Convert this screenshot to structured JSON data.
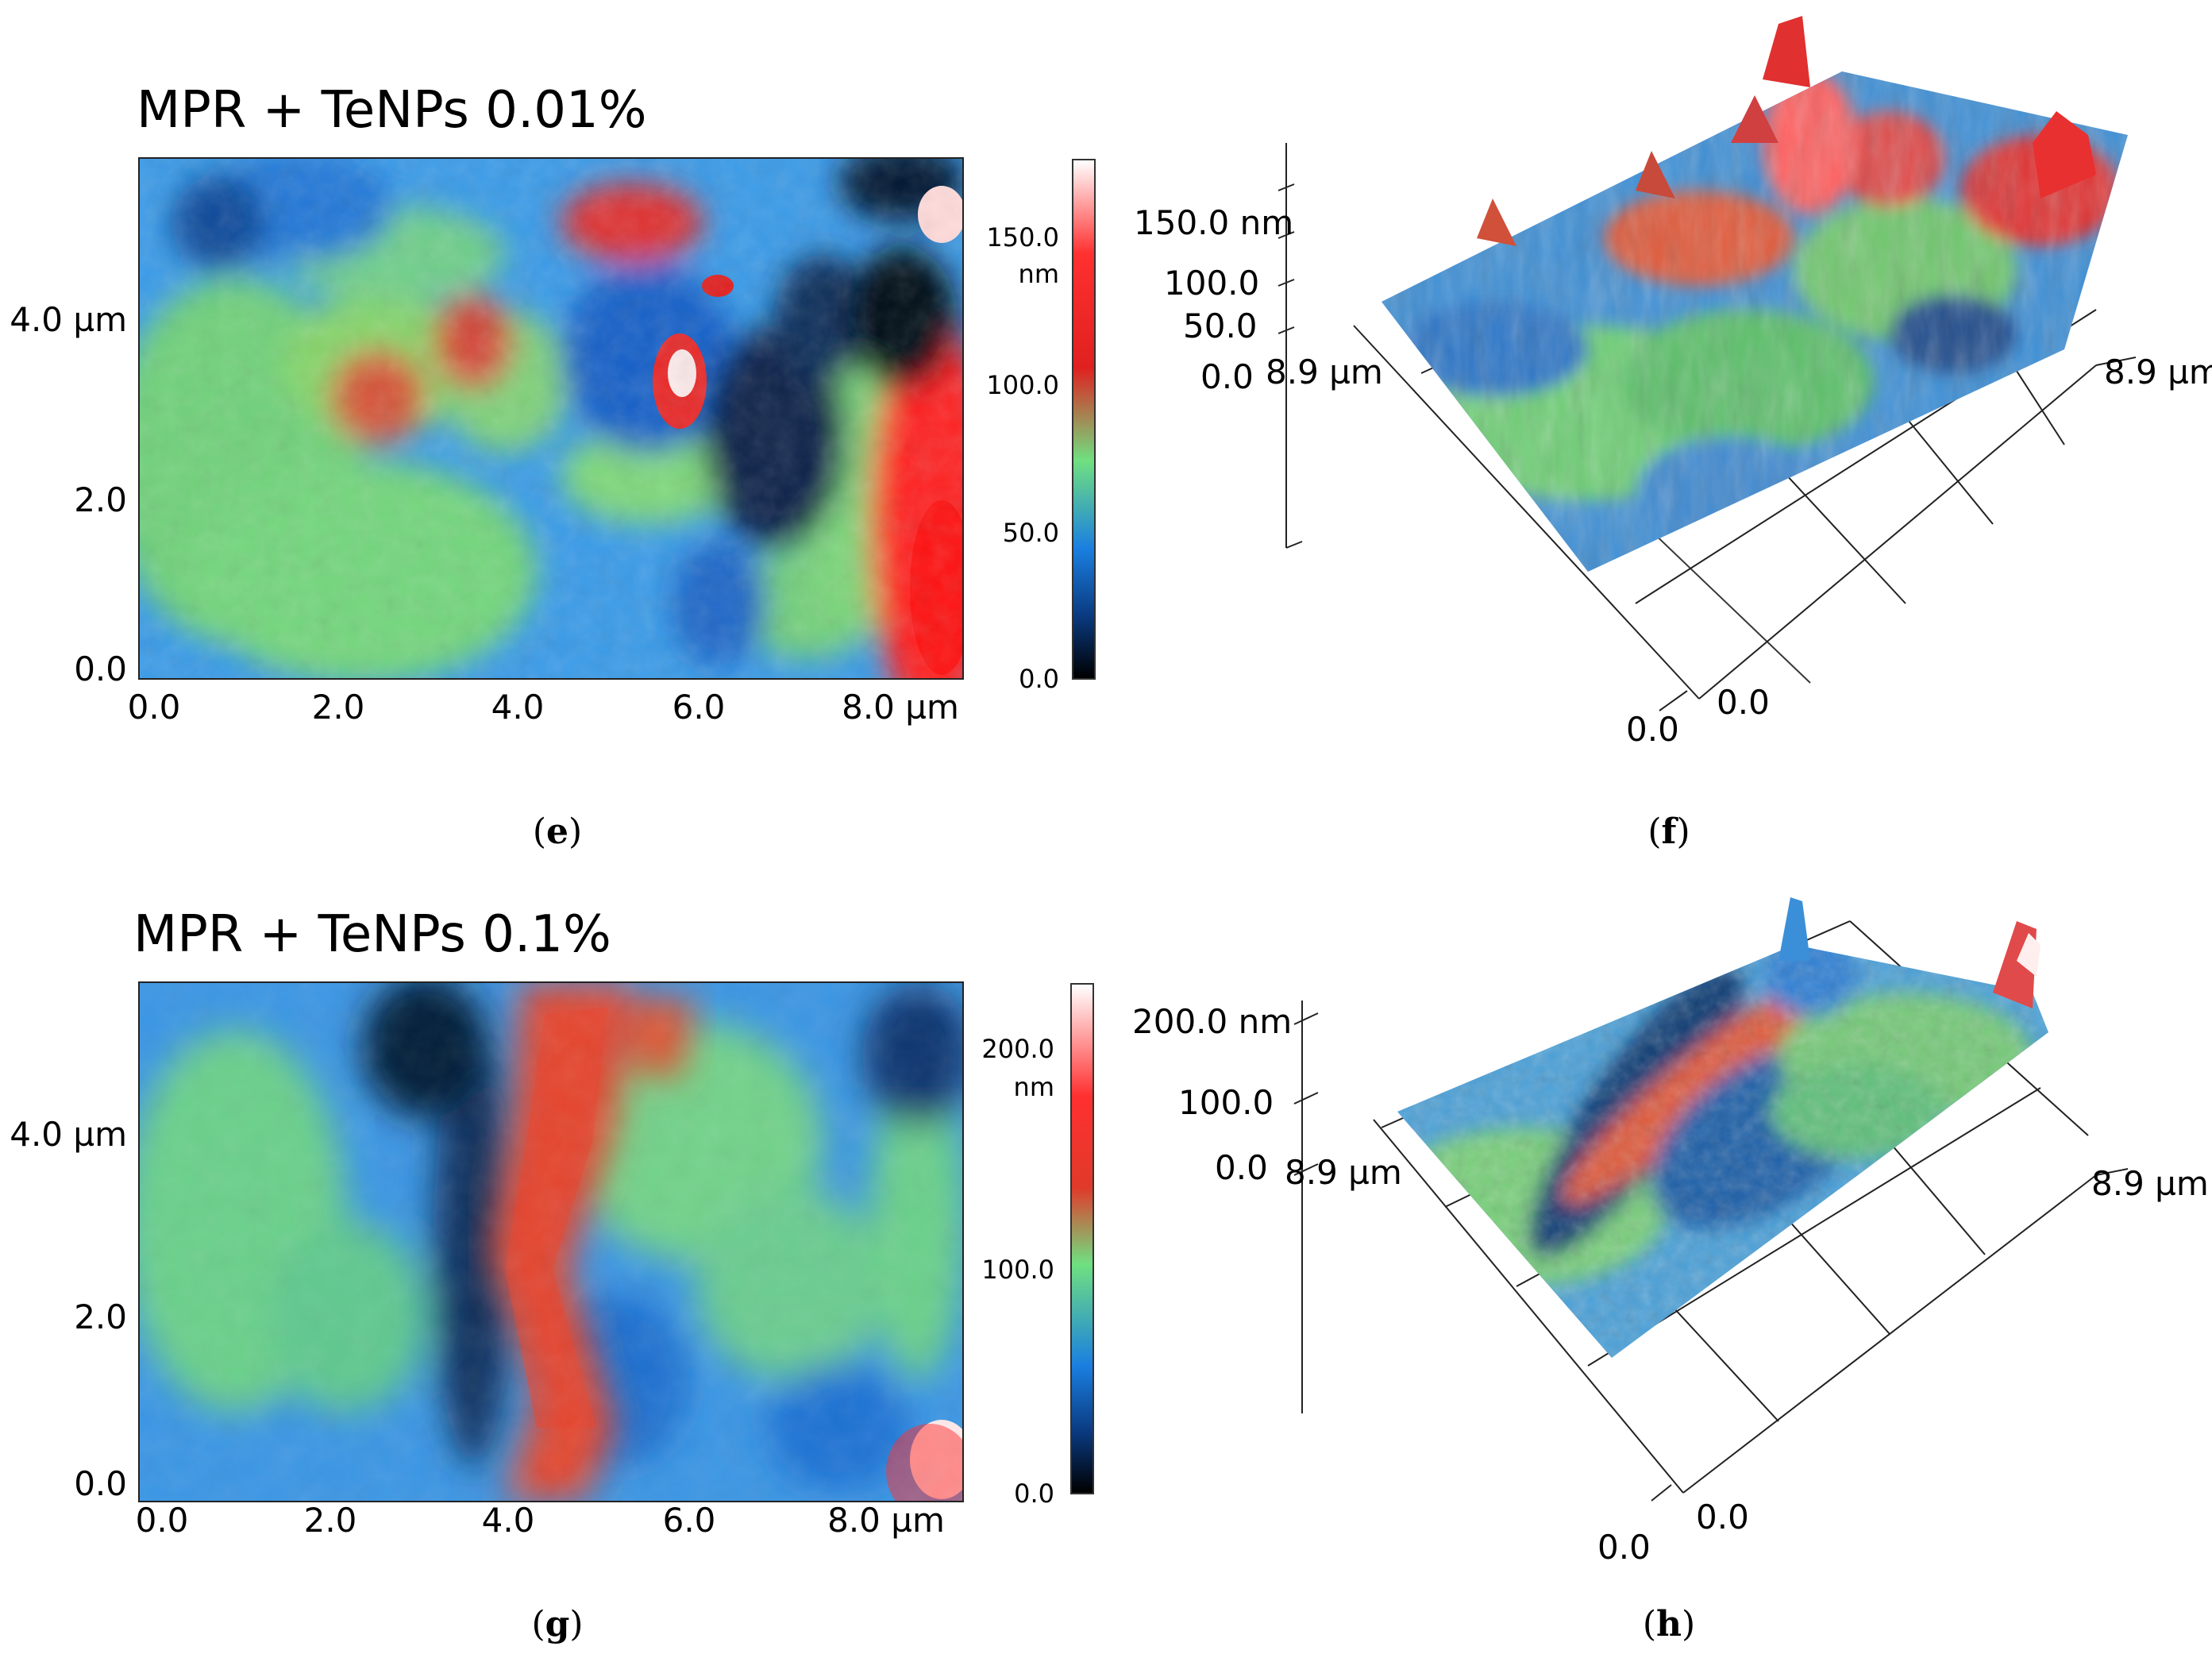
{
  "panels": {
    "e": {
      "title": "MPR + TeNPs 0.01%",
      "y_ticks": [
        "4.0 µm",
        "2.0",
        "0.0"
      ],
      "x_ticks": [
        "0.0",
        "2.0",
        "4.0",
        "6.0",
        "8.0 µm"
      ],
      "colorbar": {
        "top_label": "150.0",
        "unit": "nm",
        "mid_label": "100.0",
        "low_label": "50.0",
        "zero_label": "0.0"
      },
      "caption": "e"
    },
    "f": {
      "z_ticks": [
        "150.0 nm",
        "100.0",
        "50.0",
        "0.0"
      ],
      "axis_left": "8.9 µm",
      "axis_right": "8.9 µm",
      "origin_left": "0.0",
      "origin_right": "0.0",
      "caption": "f"
    },
    "g": {
      "title": "MPR + TeNPs 0.1%",
      "y_ticks": [
        "4.0 µm",
        "2.0",
        "0.0"
      ],
      "x_ticks": [
        "0.0",
        "2.0",
        "4.0",
        "6.0",
        "8.0 µm"
      ],
      "colorbar": {
        "top_label": "200.0",
        "unit": "nm",
        "mid_label": "100.0",
        "zero_label": "0.0"
      },
      "caption": "g"
    },
    "h": {
      "z_ticks": [
        "200.0 nm",
        "100.0",
        "0.0"
      ],
      "axis_left": "8.9 µm",
      "axis_right": "8.9 µm",
      "origin_left": "0.0",
      "origin_right": "0.0",
      "caption": "h"
    }
  },
  "colors": {
    "low": "#000000",
    "blue": "#1a7fe0",
    "green": "#6fe07a",
    "red": "#e02020",
    "white": "#ffffff"
  }
}
